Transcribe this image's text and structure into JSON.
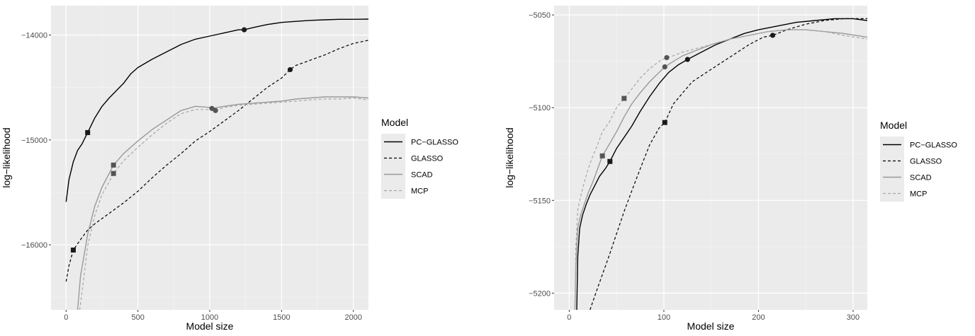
{
  "chart_data": [
    {
      "type": "line",
      "title": "",
      "xlabel": "Model size",
      "ylabel": "log−likelihood",
      "xlim": [
        -105,
        2105
      ],
      "ylim": [
        -16620,
        -13720
      ],
      "xticks": [
        0,
        500,
        1000,
        1500,
        2000
      ],
      "xtick_labels": [
        "0",
        "500",
        "1000",
        "1500",
        "2000"
      ],
      "yticks": [
        -16000,
        -15000,
        -14000
      ],
      "ytick_labels": [
        "−16000",
        "−15000",
        "−14000"
      ],
      "grid": true,
      "legend": {
        "title": "Model",
        "position": "right"
      },
      "series": [
        {
          "name": "PC−GLASSO",
          "color": "#000000",
          "dash": "solid",
          "x": [
            0,
            20,
            50,
            80,
            110,
            150,
            200,
            250,
            300,
            350,
            400,
            450,
            500,
            600,
            700,
            800,
            900,
            1000,
            1100,
            1200,
            1240,
            1300,
            1400,
            1500,
            1600,
            1700,
            1800,
            1900,
            2000,
            2105
          ],
          "y": [
            -15590,
            -15380,
            -15210,
            -15100,
            -15040,
            -14930,
            -14790,
            -14680,
            -14600,
            -14530,
            -14460,
            -14370,
            -14310,
            -14230,
            -14160,
            -14090,
            -14040,
            -14010,
            -13980,
            -13950,
            -13950,
            -13930,
            -13900,
            -13880,
            -13870,
            -13860,
            -13855,
            -13850,
            -13850,
            -13848
          ],
          "markers": [
            {
              "x": 150,
              "y": -14930,
              "shape": "square"
            },
            {
              "x": 1240,
              "y": -13950,
              "shape": "circle"
            }
          ]
        },
        {
          "name": "GLASSO",
          "color": "#000000",
          "dash": "dashed",
          "x": [
            0,
            20,
            50,
            100,
            150,
            200,
            300,
            400,
            500,
            600,
            700,
            800,
            900,
            1000,
            1100,
            1200,
            1300,
            1400,
            1500,
            1560,
            1600,
            1700,
            1800,
            1900,
            2000,
            2105
          ],
          "y": [
            -16350,
            -16200,
            -16050,
            -15950,
            -15860,
            -15800,
            -15700,
            -15600,
            -15490,
            -15360,
            -15240,
            -15130,
            -15010,
            -14920,
            -14820,
            -14720,
            -14610,
            -14500,
            -14410,
            -14330,
            -14290,
            -14240,
            -14190,
            -14130,
            -14080,
            -14050
          ],
          "markers": [
            {
              "x": 50,
              "y": -16050,
              "shape": "square"
            },
            {
              "x": 1560,
              "y": -14330,
              "shape": "circle"
            }
          ]
        },
        {
          "name": "SCAD",
          "color": "#999999",
          "dash": "solid",
          "x": [
            80,
            100,
            150,
            200,
            250,
            300,
            330,
            400,
            500,
            600,
            700,
            800,
            900,
            1000,
            1015,
            1100,
            1200,
            1300,
            1400,
            1500,
            1600,
            1700,
            1800,
            1900,
            2000,
            2105
          ],
          "y": [
            -16620,
            -16300,
            -15900,
            -15630,
            -15450,
            -15320,
            -15240,
            -15130,
            -15010,
            -14900,
            -14810,
            -14720,
            -14680,
            -14690,
            -14700,
            -14680,
            -14660,
            -14650,
            -14640,
            -14630,
            -14610,
            -14600,
            -14590,
            -14590,
            -14590,
            -14600
          ],
          "markers": [
            {
              "x": 330,
              "y": -15240,
              "shape": "square"
            },
            {
              "x": 1015,
              "y": -14700,
              "shape": "circle"
            }
          ]
        },
        {
          "name": "MCP",
          "color": "#a6a6a6",
          "dash": "dashed",
          "x": [
            95,
            120,
            150,
            200,
            250,
            300,
            330,
            400,
            500,
            600,
            700,
            800,
            900,
            1000,
            1040,
            1100,
            1200,
            1300,
            1400,
            1500,
            1600,
            1700,
            1800,
            1900,
            2000,
            2105
          ],
          "y": [
            -16620,
            -16350,
            -16010,
            -15720,
            -15520,
            -15400,
            -15320,
            -15200,
            -15070,
            -14950,
            -14840,
            -14750,
            -14710,
            -14710,
            -14720,
            -14690,
            -14670,
            -14660,
            -14650,
            -14640,
            -14630,
            -14620,
            -14610,
            -14610,
            -14600,
            -14620
          ],
          "markers": [
            {
              "x": 330,
              "y": -15320,
              "shape": "square"
            },
            {
              "x": 1040,
              "y": -14720,
              "shape": "circle"
            }
          ]
        }
      ]
    },
    {
      "type": "line",
      "title": "",
      "xlabel": "Model size",
      "ylabel": "log−likelihood",
      "xlim": [
        -16,
        315
      ],
      "ylim": [
        -5209,
        -5045
      ],
      "xticks": [
        0,
        100,
        200,
        300
      ],
      "xtick_labels": [
        "0",
        "100",
        "200",
        "300"
      ],
      "yticks": [
        -5200,
        -5150,
        -5100,
        -5050
      ],
      "ytick_labels": [
        "−5200",
        "−5150",
        "−5100",
        "−5050"
      ],
      "grid": true,
      "legend": {
        "title": "Model",
        "position": "right"
      },
      "series": [
        {
          "name": "PC−GLASSO",
          "color": "#000000",
          "dash": "solid",
          "x": [
            8,
            9,
            11,
            14,
            18,
            22,
            27,
            32,
            38,
            43,
            50,
            58,
            66,
            75,
            85,
            95,
            105,
            115,
            125,
            140,
            155,
            170,
            185,
            200,
            220,
            240,
            260,
            280,
            300,
            315
          ],
          "y": [
            -5209,
            -5180,
            -5165,
            -5158,
            -5152,
            -5147,
            -5142,
            -5137,
            -5133,
            -5129,
            -5122,
            -5116,
            -5110,
            -5102,
            -5094,
            -5087,
            -5081,
            -5077,
            -5074,
            -5070,
            -5066,
            -5063,
            -5060,
            -5058,
            -5056,
            -5054,
            -5053,
            -5052,
            -5052,
            -5053
          ],
          "markers": [
            {
              "x": 43,
              "y": -5129,
              "shape": "square"
            },
            {
              "x": 125,
              "y": -5074,
              "shape": "circle"
            }
          ]
        },
        {
          "name": "GLASSO",
          "color": "#000000",
          "dash": "dashed",
          "x": [
            22,
            28,
            35,
            42,
            50,
            58,
            66,
            75,
            85,
            95,
            101,
            110,
            120,
            130,
            145,
            160,
            175,
            190,
            205,
            215,
            230,
            250,
            270,
            290,
            315
          ],
          "y": [
            -5209,
            -5200,
            -5190,
            -5180,
            -5168,
            -5156,
            -5145,
            -5133,
            -5120,
            -5111,
            -5108,
            -5098,
            -5092,
            -5086,
            -5081,
            -5076,
            -5071,
            -5066,
            -5062,
            -5061,
            -5058,
            -5055,
            -5053,
            -5052,
            -5052
          ],
          "markers": [
            {
              "x": 101,
              "y": -5108,
              "shape": "square"
            },
            {
              "x": 215,
              "y": -5061,
              "shape": "circle"
            }
          ]
        },
        {
          "name": "SCAD",
          "color": "#999999",
          "dash": "solid",
          "x": [
            6,
            7,
            9,
            12,
            16,
            20,
            25,
            30,
            35,
            42,
            50,
            58,
            66,
            75,
            85,
            95,
            101,
            110,
            120,
            135,
            150,
            170,
            190,
            210,
            230,
            250,
            270,
            290,
            315
          ],
          "y": [
            -5209,
            -5185,
            -5165,
            -5158,
            -5152,
            -5146,
            -5140,
            -5133,
            -5126,
            -5120,
            -5113,
            -5105,
            -5098,
            -5092,
            -5086,
            -5081,
            -5078,
            -5075,
            -5072,
            -5069,
            -5066,
            -5063,
            -5061,
            -5059,
            -5058,
            -5058,
            -5059,
            -5060,
            -5062
          ],
          "markers": [
            {
              "x": 35,
              "y": -5126,
              "shape": "square"
            },
            {
              "x": 101,
              "y": -5078,
              "shape": "circle"
            }
          ]
        },
        {
          "name": "MCP",
          "color": "#a6a6a6",
          "dash": "dashed",
          "x": [
            6,
            7,
            9,
            12,
            16,
            20,
            25,
            30,
            35,
            42,
            50,
            58,
            66,
            75,
            85,
            95,
            103,
            110,
            120,
            135,
            150,
            170,
            190,
            210,
            230,
            250,
            270,
            290,
            315
          ],
          "y": [
            -5209,
            -5175,
            -5155,
            -5148,
            -5140,
            -5133,
            -5126,
            -5120,
            -5113,
            -5108,
            -5100,
            -5095,
            -5090,
            -5084,
            -5079,
            -5075,
            -5073,
            -5072,
            -5070,
            -5068,
            -5066,
            -5063,
            -5061,
            -5059,
            -5058,
            -5058,
            -5059,
            -5061,
            -5063
          ],
          "markers": [
            {
              "x": 58,
              "y": -5095,
              "shape": "square"
            },
            {
              "x": 103,
              "y": -5073,
              "shape": "circle"
            }
          ]
        }
      ]
    }
  ]
}
